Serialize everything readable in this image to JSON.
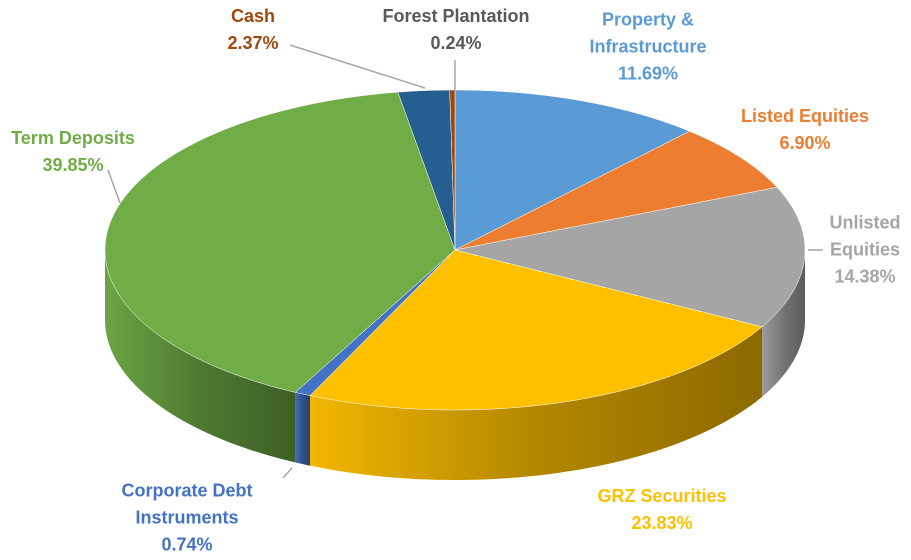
{
  "chart_data": {
    "type": "pie3d",
    "categories": [
      "Property & Infrastructure",
      "Listed Equities",
      "Unlisted Equities",
      "GRZ Securities",
      "Corporate Debt Instruments",
      "Term Deposits",
      "Cash",
      "Forest Plantation"
    ],
    "values": [
      11.69,
      6.9,
      14.38,
      23.83,
      0.74,
      39.85,
      2.37,
      0.24
    ],
    "value_labels": [
      "11.69%",
      "6.90%",
      "14.38%",
      "23.83%",
      "0.74%",
      "39.85%",
      "2.37%",
      "0.24%"
    ],
    "colors": [
      "#5b9bd5",
      "#ed7d31",
      "#a5a5a5",
      "#ffc000",
      "#4472c4",
      "#70ad47",
      "#255e91",
      "#9e480e"
    ],
    "label_colors": [
      "#5b9bd5",
      "#ed7d31",
      "#a5a5a5",
      "#ffc000",
      "#4472c4",
      "#70ad47",
      "#9e480e",
      "#595959"
    ]
  }
}
